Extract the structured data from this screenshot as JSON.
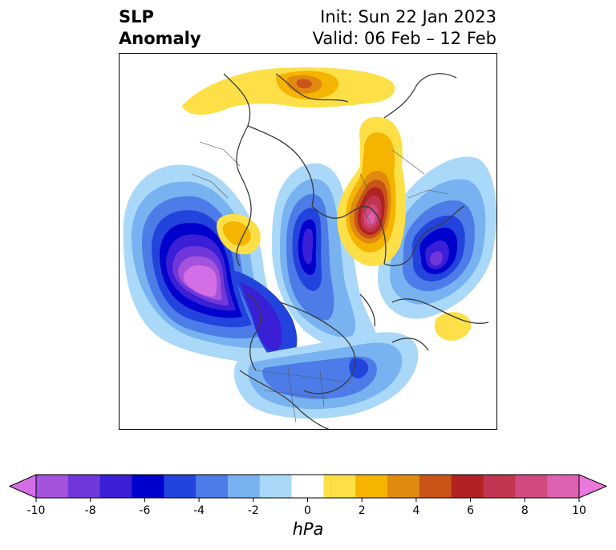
{
  "title": {
    "left_line1": "SLP",
    "left_line2": "Anomaly",
    "right_line1": "Init: Sun 22 Jan 2023",
    "right_line2": "Valid: 06 Feb – 12 Feb"
  },
  "colorbar": {
    "unit": "hPa",
    "min": -10,
    "max": 10,
    "tick_labels": [
      "-10",
      "-8",
      "-6",
      "-4",
      "-2",
      "0",
      "2",
      "4",
      "6",
      "8",
      "10"
    ],
    "extend": "both",
    "colors": [
      "#d46ee6",
      "#a552dc",
      "#7038da",
      "#3a1fd6",
      "#0000cc",
      "#2244dd",
      "#4d7ce8",
      "#78b2f0",
      "#aad8f8",
      "#ffffff",
      "#fde047",
      "#f4b400",
      "#e08a10",
      "#c85418",
      "#b22222",
      "#c23550",
      "#d04a80",
      "#de60b0",
      "#ea78dd"
    ]
  },
  "map": {
    "projection": "polar stereographic, North Hemisphere",
    "features": {
      "strongest_negative": "North Pacific / Aleutian low, below -10 hPa",
      "strongest_positive": "Scandinavia / Northern Europe high, above 8 hPa"
    }
  }
}
